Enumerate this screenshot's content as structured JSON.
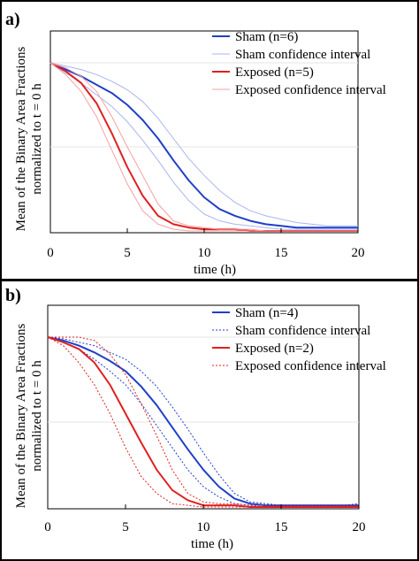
{
  "panels": [
    {
      "label": "a)",
      "xlabel": "time (h)",
      "ylabel_line1": "Mean of the Binary Area Fractions",
      "ylabel_line2": "normalized to t = 0 h",
      "xticks": [
        "0",
        "5",
        "10",
        "15",
        "20"
      ],
      "legend": [
        {
          "label": "Sham (n=6)",
          "color": "#1f3fc8",
          "style": "solid-thick"
        },
        {
          "label": "Sham confidence interval",
          "color": "#a9b6ee",
          "style": "solid-thin"
        },
        {
          "label": "Exposed (n=5)",
          "color": "#e02020",
          "style": "solid-thick"
        },
        {
          "label": "Exposed confidence interval",
          "color": "#f5a0a0",
          "style": "solid-thin"
        }
      ]
    },
    {
      "label": "b)",
      "xlabel": "time (h)",
      "ylabel_line1": "Mean of the Binary Area Fractions",
      "ylabel_line2": "normalized to t = 0 h",
      "xticks": [
        "0",
        "5",
        "10",
        "15",
        "20"
      ],
      "legend": [
        {
          "label": "Sham (n=4)",
          "color": "#1f3fc8",
          "style": "solid-thick"
        },
        {
          "label": "Sham confidence interval",
          "color": "#1f3fc8",
          "style": "dotted"
        },
        {
          "label": "Exposed (n=2)",
          "color": "#e02020",
          "style": "solid-thick"
        },
        {
          "label": "Exposed confidence interval",
          "color": "#e02020",
          "style": "dotted"
        }
      ]
    }
  ],
  "chart_data": [
    {
      "type": "line",
      "xlim": [
        0,
        20
      ],
      "ylim": [
        0,
        1
      ],
      "grid": true,
      "legend_position": "top-right",
      "series": [
        {
          "name": "Sham (n=6)",
          "color": "#1f3fc8",
          "x": [
            0,
            1,
            2,
            3,
            4,
            5,
            6,
            7,
            8,
            9,
            10,
            11,
            12,
            13,
            14,
            15,
            16,
            17,
            18,
            19,
            20
          ],
          "y": [
            1.0,
            0.96,
            0.92,
            0.87,
            0.82,
            0.75,
            0.66,
            0.55,
            0.42,
            0.3,
            0.2,
            0.13,
            0.09,
            0.06,
            0.04,
            0.03,
            0.02,
            0.02,
            0.02,
            0.02,
            0.02
          ]
        },
        {
          "name": "Sham confidence interval",
          "color": "#a9b6ee",
          "x": [
            0,
            1,
            2,
            3,
            4,
            5,
            6,
            7,
            8,
            9,
            10,
            11,
            12,
            13,
            14,
            15,
            16,
            17,
            18,
            19,
            20
          ],
          "y": [
            1.0,
            0.98,
            0.96,
            0.93,
            0.89,
            0.84,
            0.77,
            0.67,
            0.55,
            0.43,
            0.33,
            0.24,
            0.17,
            0.12,
            0.09,
            0.07,
            0.05,
            0.04,
            0.03,
            0.03,
            0.03
          ]
        },
        {
          "name": "Sham confidence interval",
          "color": "#a9b6ee",
          "x": [
            0,
            1,
            2,
            3,
            4,
            5,
            6,
            7,
            8,
            9,
            10,
            11,
            12,
            13,
            14,
            15,
            16,
            17,
            18,
            19,
            20
          ],
          "y": [
            1.0,
            0.94,
            0.88,
            0.81,
            0.74,
            0.65,
            0.54,
            0.42,
            0.29,
            0.18,
            0.1,
            0.06,
            0.04,
            0.03,
            0.02,
            0.01,
            0.01,
            0.01,
            0.01,
            0.01,
            0.01
          ]
        },
        {
          "name": "Exposed (n=5)",
          "color": "#e02020",
          "x": [
            0,
            1,
            2,
            3,
            4,
            5,
            6,
            7,
            8,
            9,
            10,
            11,
            12,
            13,
            14,
            15,
            16,
            17,
            18,
            19,
            20
          ],
          "y": [
            1.0,
            0.95,
            0.88,
            0.76,
            0.58,
            0.38,
            0.21,
            0.09,
            0.04,
            0.02,
            0.01,
            0.01,
            0.01,
            0.0,
            0.0,
            0.0,
            0.0,
            0.0,
            0.0,
            0.0,
            0.0
          ]
        },
        {
          "name": "Exposed confidence interval",
          "color": "#f5a0a0",
          "x": [
            0,
            1,
            2,
            3,
            4,
            5,
            6,
            7,
            8,
            9,
            10,
            11,
            12,
            13,
            14,
            15,
            16,
            17,
            18,
            19,
            20
          ],
          "y": [
            1.0,
            0.97,
            0.92,
            0.83,
            0.68,
            0.5,
            0.33,
            0.16,
            0.06,
            0.03,
            0.02,
            0.01,
            0.01,
            0.01,
            0.0,
            0.0,
            0.0,
            0.0,
            0.0,
            0.0,
            0.0
          ]
        },
        {
          "name": "Exposed confidence interval",
          "color": "#f5a0a0",
          "x": [
            0,
            1,
            2,
            3,
            4,
            5,
            6,
            7,
            8,
            9,
            10,
            11,
            12,
            13,
            14,
            15,
            16,
            17,
            18,
            19,
            20
          ],
          "y": [
            1.0,
            0.93,
            0.83,
            0.68,
            0.48,
            0.28,
            0.12,
            0.04,
            0.01,
            0.0,
            0.0,
            0.0,
            0.0,
            0.0,
            0.0,
            0.0,
            0.0,
            0.0,
            0.0,
            0.0,
            0.0
          ]
        }
      ]
    },
    {
      "type": "line",
      "xlim": [
        0,
        20
      ],
      "ylim": [
        0,
        1
      ],
      "grid": true,
      "legend_position": "top-right",
      "series": [
        {
          "name": "Sham (n=4)",
          "color": "#1f3fc8",
          "x": [
            0,
            1,
            2,
            3,
            4,
            5,
            6,
            7,
            8,
            9,
            10,
            11,
            12,
            13,
            14,
            15,
            16,
            17,
            18,
            19,
            20
          ],
          "y": [
            1.0,
            0.98,
            0.95,
            0.91,
            0.86,
            0.8,
            0.71,
            0.6,
            0.47,
            0.34,
            0.22,
            0.12,
            0.05,
            0.02,
            0.01,
            0.01,
            0.01,
            0.01,
            0.01,
            0.01,
            0.01
          ]
        },
        {
          "name": "Sham confidence interval",
          "color": "#1f3fc8",
          "x": [
            0,
            1,
            2,
            3,
            4,
            5,
            6,
            7,
            8,
            9,
            10,
            11,
            12,
            13,
            14,
            15,
            16,
            17,
            18,
            19,
            20
          ],
          "y": [
            1.0,
            0.99,
            0.97,
            0.95,
            0.91,
            0.87,
            0.8,
            0.71,
            0.59,
            0.46,
            0.32,
            0.19,
            0.08,
            0.03,
            0.02,
            0.01,
            0.01,
            0.01,
            0.01,
            0.01,
            0.02
          ]
        },
        {
          "name": "Sham confidence interval",
          "color": "#1f3fc8",
          "x": [
            0,
            1,
            2,
            3,
            4,
            5,
            6,
            7,
            8,
            9,
            10,
            11,
            12,
            13,
            14,
            15,
            16,
            17,
            18,
            19,
            20
          ],
          "y": [
            1.0,
            0.97,
            0.93,
            0.87,
            0.8,
            0.72,
            0.61,
            0.48,
            0.35,
            0.22,
            0.12,
            0.06,
            0.02,
            0.01,
            0.0,
            0.0,
            0.0,
            0.0,
            0.0,
            0.0,
            0.0
          ]
        },
        {
          "name": "Exposed (n=2)",
          "color": "#e02020",
          "x": [
            0,
            1,
            2,
            3,
            4,
            5,
            6,
            7,
            8,
            9,
            10,
            11,
            12,
            13,
            14,
            15,
            16,
            17,
            18,
            19,
            20
          ],
          "y": [
            1.0,
            0.97,
            0.93,
            0.85,
            0.72,
            0.55,
            0.38,
            0.22,
            0.1,
            0.04,
            0.01,
            0.01,
            0.01,
            0.0,
            0.0,
            0.0,
            0.0,
            0.0,
            0.0,
            0.0,
            0.0
          ]
        },
        {
          "name": "Exposed confidence interval",
          "color": "#e02020",
          "x": [
            0,
            1,
            2,
            3,
            4,
            5,
            6,
            7,
            8,
            9,
            10,
            11,
            12,
            13,
            14,
            15,
            16,
            17,
            18,
            19,
            20
          ],
          "y": [
            1.0,
            1.0,
            1.0,
            0.98,
            0.9,
            0.78,
            0.61,
            0.42,
            0.22,
            0.08,
            0.03,
            0.02,
            0.02,
            0.01,
            0.01,
            0.01,
            0.01,
            0.01,
            0.01,
            0.01,
            0.01
          ]
        },
        {
          "name": "Exposed confidence interval",
          "color": "#e02020",
          "x": [
            0,
            1,
            2,
            3,
            4,
            5,
            6,
            7,
            8,
            9,
            10,
            11,
            12,
            13,
            14,
            15,
            16,
            17,
            18,
            19,
            20
          ],
          "y": [
            1.0,
            0.95,
            0.85,
            0.72,
            0.55,
            0.35,
            0.18,
            0.08,
            0.02,
            0.01,
            0.0,
            0.0,
            0.0,
            0.0,
            0.0,
            0.0,
            0.0,
            0.0,
            0.0,
            0.0,
            0.0
          ]
        }
      ]
    }
  ]
}
